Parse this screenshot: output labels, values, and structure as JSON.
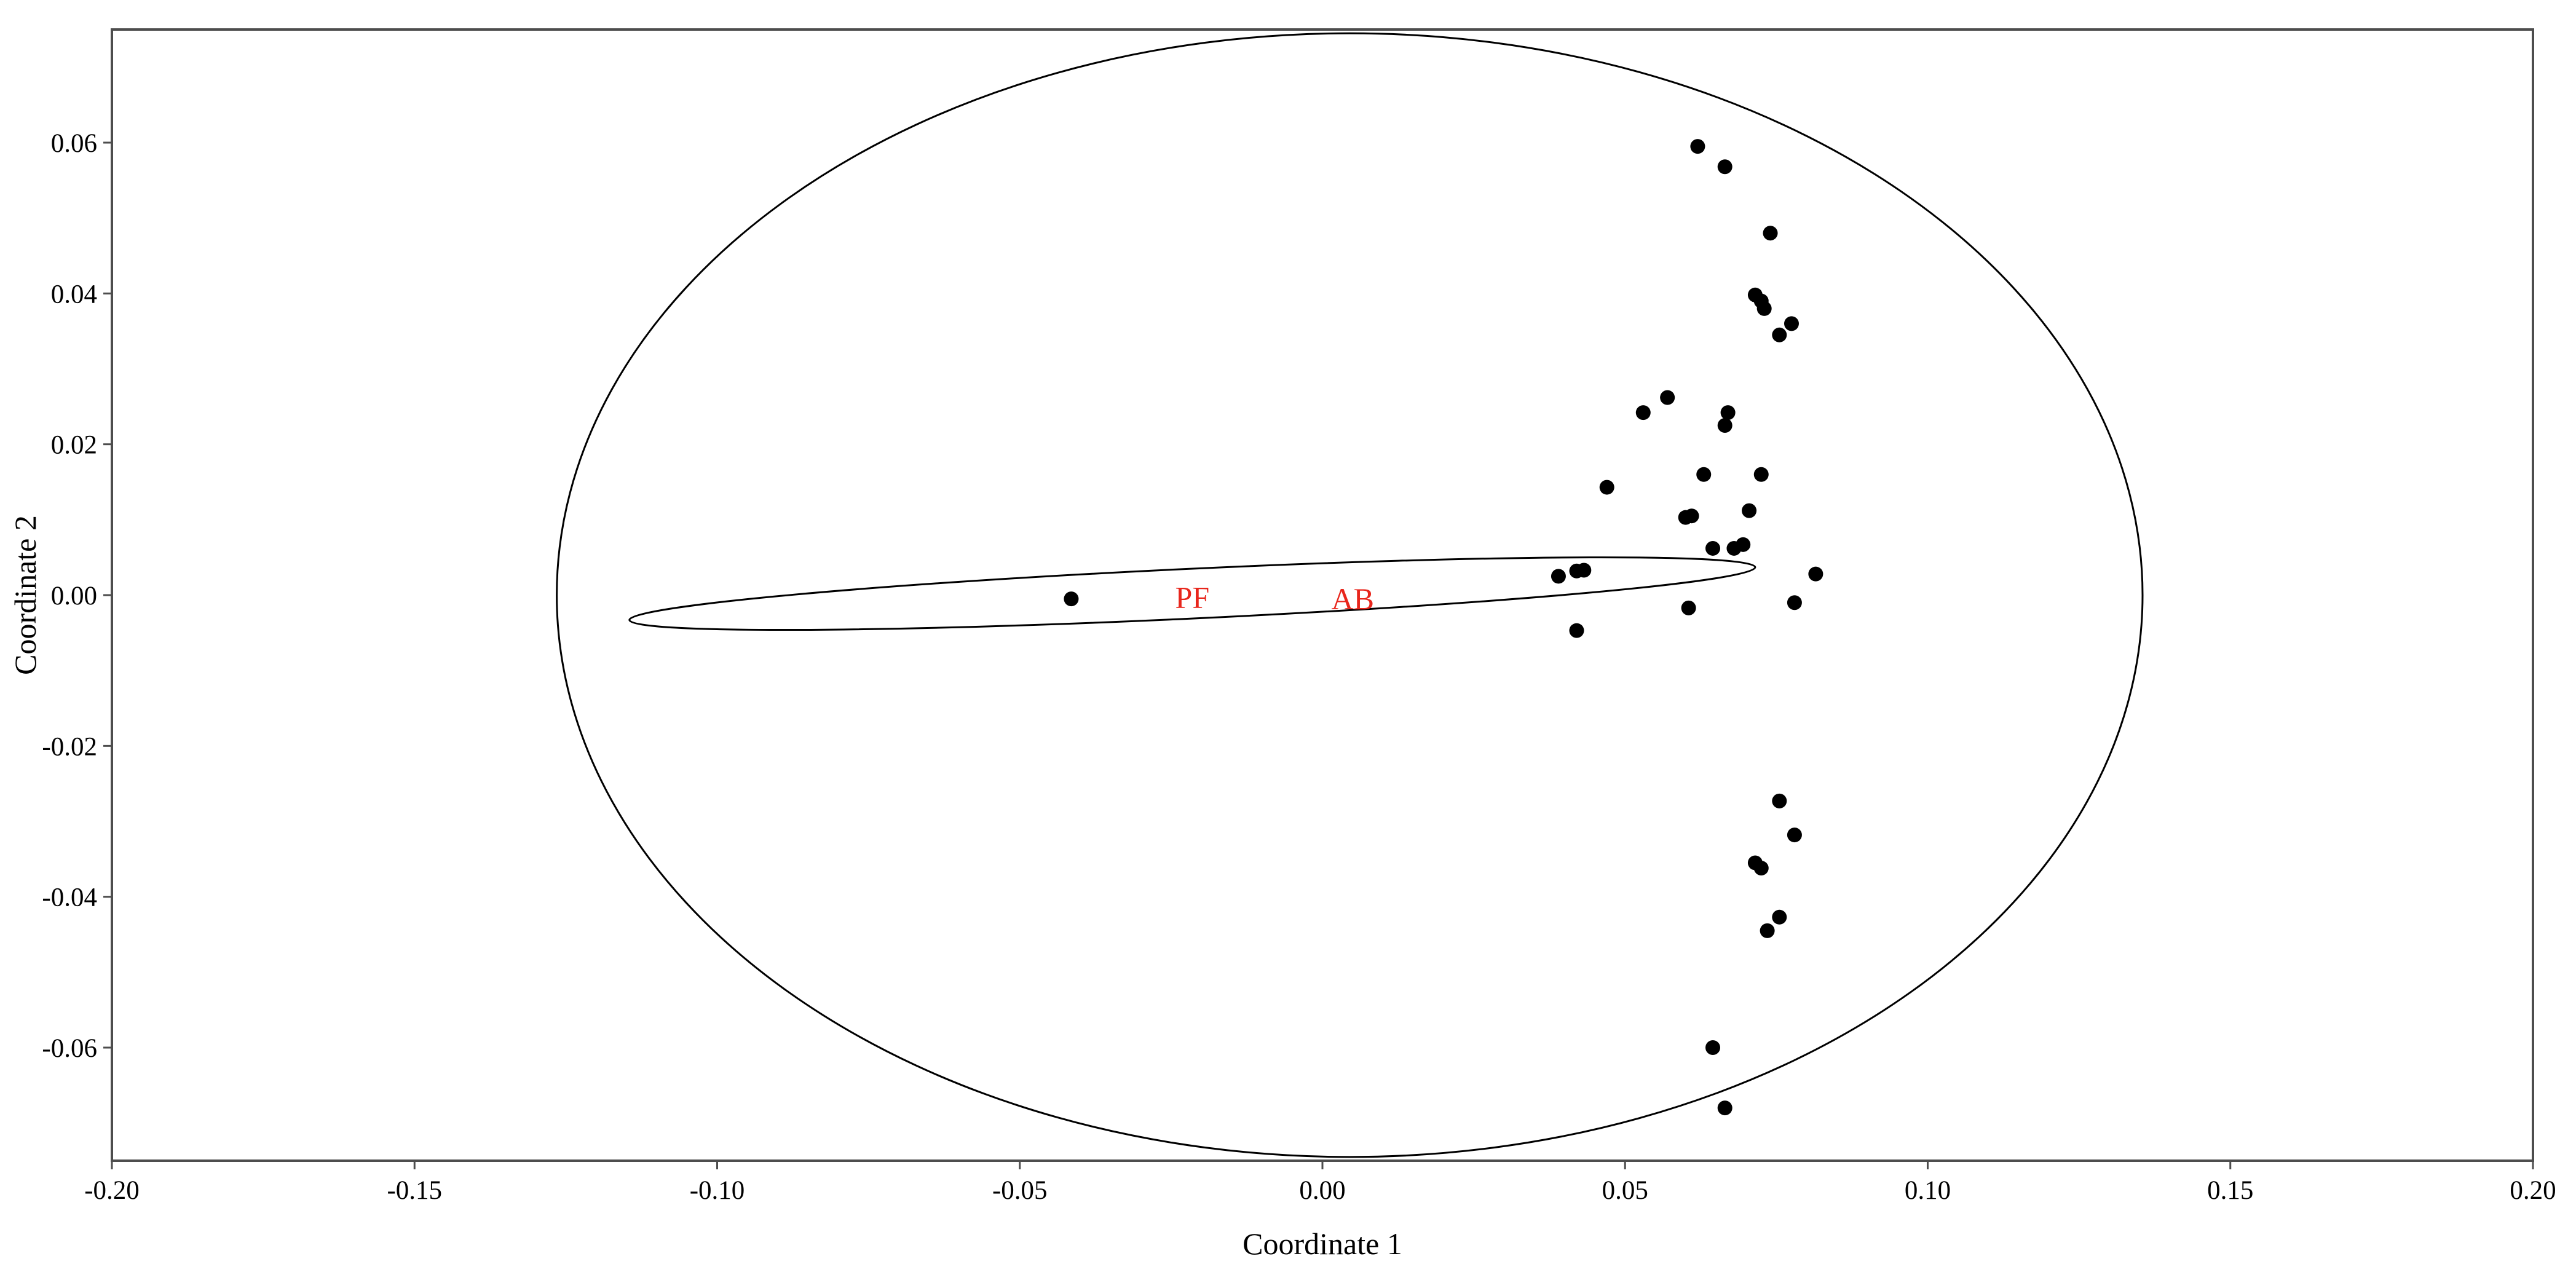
{
  "chart_data": {
    "type": "scatter",
    "title": "",
    "xlabel": "Coordinate 1",
    "ylabel": "Coordinate 2",
    "xlim": [
      -0.2,
      0.2
    ],
    "ylim": [
      -0.075,
      0.075
    ],
    "grid": false,
    "x_ticks": [
      -0.2,
      -0.15,
      -0.1,
      -0.05,
      0.0,
      0.05,
      0.1,
      0.15,
      0.2
    ],
    "x_tick_labels": [
      "-0.20",
      "-0.15",
      "-0.10",
      "-0.05",
      "0.00",
      "0.05",
      "0.10",
      "0.15",
      "0.20"
    ],
    "y_ticks": [
      -0.06,
      -0.04,
      -0.02,
      0.0,
      0.02,
      0.04,
      0.06
    ],
    "y_tick_labels": [
      "-0.06",
      "-0.04",
      "-0.02",
      "0.00",
      "0.02",
      "0.04",
      "0.06"
    ],
    "points": [
      {
        "x": -0.0415,
        "y": -0.0005
      },
      {
        "x": 0.039,
        "y": 0.0025
      },
      {
        "x": 0.042,
        "y": 0.0032
      },
      {
        "x": 0.0432,
        "y": 0.0033
      },
      {
        "x": 0.042,
        "y": -0.0047
      },
      {
        "x": 0.047,
        "y": 0.0143
      },
      {
        "x": 0.053,
        "y": 0.0242
      },
      {
        "x": 0.057,
        "y": 0.0262
      },
      {
        "x": 0.06,
        "y": 0.0103
      },
      {
        "x": 0.061,
        "y": 0.0105
      },
      {
        "x": 0.0605,
        "y": -0.0017
      },
      {
        "x": 0.063,
        "y": 0.016
      },
      {
        "x": 0.0645,
        "y": 0.0062
      },
      {
        "x": 0.062,
        "y": 0.0595
      },
      {
        "x": 0.0665,
        "y": 0.0568
      },
      {
        "x": 0.0665,
        "y": 0.0225
      },
      {
        "x": 0.067,
        "y": 0.0242
      },
      {
        "x": 0.068,
        "y": 0.0062
      },
      {
        "x": 0.0695,
        "y": 0.0067
      },
      {
        "x": 0.0705,
        "y": 0.0112
      },
      {
        "x": 0.0715,
        "y": 0.0398
      },
      {
        "x": 0.0725,
        "y": 0.039
      },
      {
        "x": 0.073,
        "y": 0.038
      },
      {
        "x": 0.0725,
        "y": 0.016
      },
      {
        "x": 0.074,
        "y": 0.048
      },
      {
        "x": 0.0755,
        "y": 0.0345
      },
      {
        "x": 0.0775,
        "y": 0.036
      },
      {
        "x": 0.078,
        "y": -0.001
      },
      {
        "x": 0.0815,
        "y": 0.0028
      },
      {
        "x": 0.0755,
        "y": -0.0273
      },
      {
        "x": 0.078,
        "y": -0.0318
      },
      {
        "x": 0.0715,
        "y": -0.0355
      },
      {
        "x": 0.0725,
        "y": -0.0362
      },
      {
        "x": 0.0755,
        "y": -0.0427
      },
      {
        "x": 0.0735,
        "y": -0.0445
      },
      {
        "x": 0.0645,
        "y": -0.06
      },
      {
        "x": 0.0665,
        "y": -0.068
      }
    ],
    "ellipses": [
      {
        "cx": 0.0045,
        "cy": 0.0,
        "rx": 0.131,
        "ry": 0.0745,
        "angle_deg": 0
      },
      {
        "x1": -0.1145,
        "y1": -0.0033,
        "x2": 0.0715,
        "y2": 0.0037,
        "ry": 0.0033
      }
    ],
    "annotations": [
      {
        "text": "PF",
        "x": -0.0215,
        "y": -0.0003
      },
      {
        "text": "AB",
        "x": 0.005,
        "y": -0.0005
      }
    ],
    "colors": {
      "points": "#000000",
      "annotations": "#e8261c",
      "axes": "#000000"
    }
  }
}
